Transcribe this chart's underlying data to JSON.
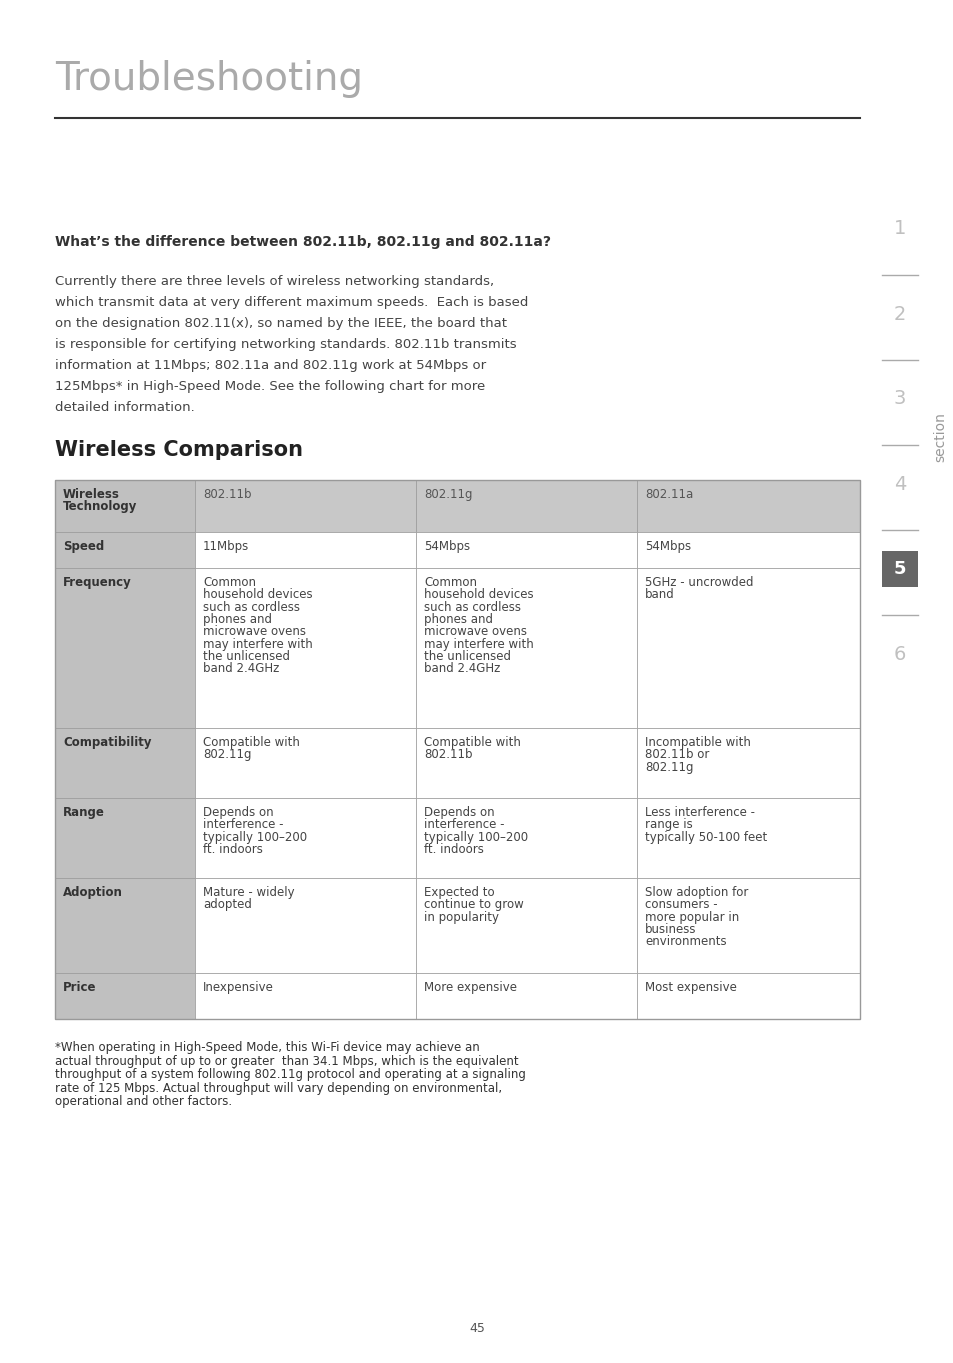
{
  "page_title": "Troubleshooting",
  "page_bg": "#ffffff",
  "title_color": "#b0b0b0",
  "section_numbers": [
    "1",
    "2",
    "3",
    "4",
    "5",
    "6"
  ],
  "section_active": "5",
  "section_active_bg": "#666666",
  "section_label": "section",
  "question": "What’s the difference between 802.11b, 802.11g and 802.11a?",
  "body_text_lines": [
    "Currently there are three levels of wireless networking standards,",
    "which transmit data at very different maximum speeds.  Each is based",
    "on the designation 802.11(x), so named by the IEEE, the board that",
    "is responsible for certifying networking standards. 802.11b transmits",
    "information at 11Mbps; 802.11a and 802.11g work at 54Mbps or",
    "125Mbps* in High-Speed Mode. See the following chart for more",
    "detailed information."
  ],
  "table_title": "Wireless Comparison",
  "table_header_bg": "#c8c8c8",
  "table_label_bg": "#c0c0c0",
  "table_data_bg": "#ffffff",
  "table_border_color": "#999999",
  "col_headers": [
    "Wireless\nTechnology",
    "802.11b",
    "802.11g",
    "802.11a"
  ],
  "rows": [
    {
      "label": "Speed",
      "col1": "11Mbps",
      "col2": "54Mbps",
      "col3": "54Mbps"
    },
    {
      "label": "Frequency",
      "col1": "Common\nhousehold devices\nsuch as cordless\nphones and\nmicrowave ovens\nmay interfere with\nthe unlicensed\nband 2.4GHz",
      "col2": "Common\nhousehold devices\nsuch as cordless\nphones and\nmicrowave ovens\nmay interfere with\nthe unlicensed\nband 2.4GHz",
      "col3": "5GHz - uncrowded\nband"
    },
    {
      "label": "Compatibility",
      "col1": "Compatible with\n802.11g",
      "col2": "Compatible with\n802.11b",
      "col3": "Incompatible with\n802.11b or\n802.11g"
    },
    {
      "label": "Range",
      "col1": "Depends on\ninterference -\ntypically 100–200\nft. indoors",
      "col2": "Depends on\ninterference -\ntypically 100–200\nft. indoors",
      "col3": "Less interference -\nrange is\ntypically 50-100 feet"
    },
    {
      "label": "Adoption",
      "col1": "Mature - widely\nadopted",
      "col2": "Expected to\ncontinue to grow\nin popularity",
      "col3": "Slow adoption for\nconsumers -\nmore popular in\nbusiness\nenvironments"
    },
    {
      "label": "Price",
      "col1": "Inexpensive",
      "col2": "More expensive",
      "col3": "Most expensive"
    }
  ],
  "footnote_lines": [
    "*When operating in High-Speed Mode, this Wi-Fi device may achieve an",
    "actual throughput of up to or greater  than 34.1 Mbps, which is the equivalent",
    "throughput of a system following 802.11g protocol and operating at a signaling",
    "rate of 125 Mbps. Actual throughput will vary depending on environmental,",
    "operational and other factors."
  ],
  "page_number": "45"
}
